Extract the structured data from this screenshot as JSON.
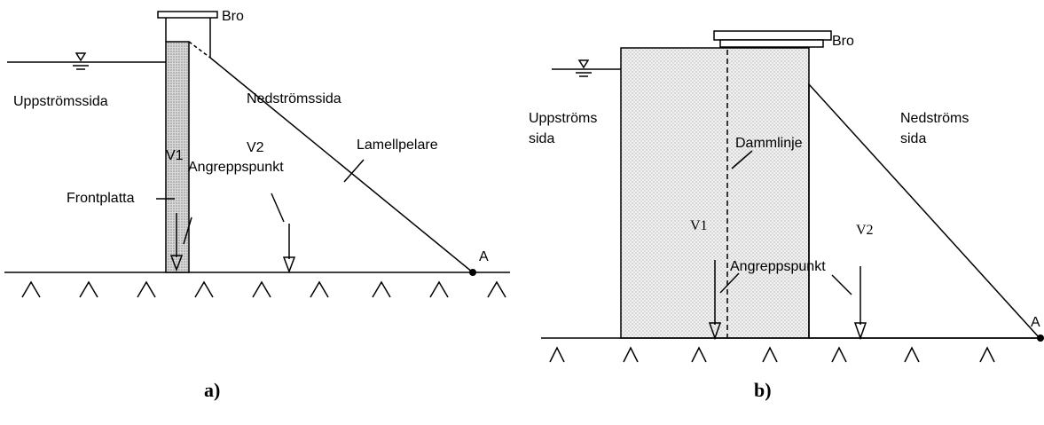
{
  "figure_a": {
    "bridge": "Bro",
    "upstream": "Uppströmssida",
    "downstream": "Nedströmssida",
    "pillar": "Lamellpelare",
    "v1": "V1",
    "v2": "V2",
    "point": "Angreppspunkt",
    "front_plate": "Frontplatta",
    "point_a": "A",
    "caption": "a)"
  },
  "figure_b": {
    "bridge": "Bro",
    "upstream_1": "Uppströms",
    "upstream_2": "sida",
    "downstream_1": "Nedströms",
    "downstream_2": "sida",
    "dam_line": "Dammlinje",
    "v1": "V1",
    "v2": "V2",
    "point": "Angreppspunkt",
    "point_a": "A",
    "caption": "b)"
  }
}
